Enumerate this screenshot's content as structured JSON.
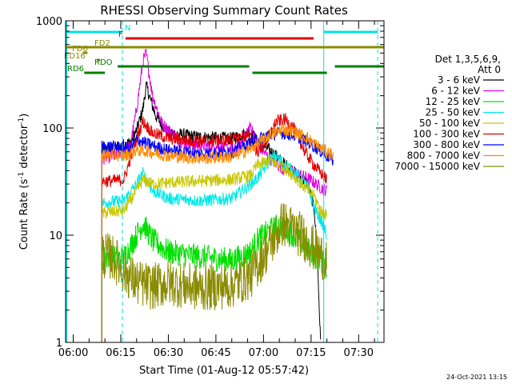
{
  "chart_data": {
    "type": "line",
    "title": "RHESSI Observing Summary Count Rates",
    "xlabel": "Start Time (01-Aug-12 05:57:42)",
    "ylabel_main": "Count Rate (s",
    "ylabel_sup": "-1",
    "ylabel_mid": " detector",
    "ylabel_end": ")",
    "y_scale": "log",
    "ylim": [
      1,
      1000
    ],
    "xlim_minutes": [
      -2.4,
      98
    ],
    "x_ticks": [
      {
        "label": "06:00",
        "minute": 0
      },
      {
        "label": "06:15",
        "minute": 15
      },
      {
        "label": "06:30",
        "minute": 30
      },
      {
        "label": "06:45",
        "minute": 45
      },
      {
        "label": "07:00",
        "minute": 60
      },
      {
        "label": "07:15",
        "minute": 75
      },
      {
        "label": "07:30",
        "minute": 90
      }
    ],
    "y_ticks": [
      {
        "label": "1",
        "value": 1
      },
      {
        "label": "10",
        "value": 10
      },
      {
        "label": "100",
        "value": 100
      },
      {
        "label": "1000",
        "value": 1000
      }
    ],
    "legend_header": [
      "Det 1,3,5,6,9,",
      "Att 0"
    ],
    "legend_placement": "right",
    "series": [
      {
        "name": "3 - 6 keV",
        "color": "#000000",
        "points": [
          [
            9,
            60
          ],
          [
            9.5,
            62
          ],
          [
            14,
            66
          ],
          [
            18,
            74
          ],
          [
            20,
            95
          ],
          [
            22,
            150
          ],
          [
            23,
            250
          ],
          [
            24,
            200
          ],
          [
            26,
            130
          ],
          [
            30,
            90
          ],
          [
            40,
            82
          ],
          [
            50,
            80
          ],
          [
            56,
            92
          ],
          [
            58,
            75
          ],
          [
            62,
            62
          ],
          [
            66,
            48
          ],
          [
            70,
            38
          ],
          [
            74,
            30
          ],
          [
            76,
            18
          ],
          [
            77,
            6
          ],
          [
            78,
            1
          ]
        ]
      },
      {
        "name": "6 - 12 keV",
        "color": "#e000e0",
        "points": [
          [
            9,
            50
          ],
          [
            9.5,
            52
          ],
          [
            14,
            56
          ],
          [
            18,
            68
          ],
          [
            20,
            150
          ],
          [
            22,
            420
          ],
          [
            23,
            500
          ],
          [
            25,
            200
          ],
          [
            28,
            110
          ],
          [
            35,
            70
          ],
          [
            45,
            68
          ],
          [
            52,
            62
          ],
          [
            55,
            95
          ],
          [
            56,
            105
          ],
          [
            58,
            70
          ],
          [
            62,
            52
          ],
          [
            66,
            42
          ],
          [
            70,
            38
          ],
          [
            74,
            34
          ],
          [
            78,
            28
          ],
          [
            80,
            26
          ]
        ]
      },
      {
        "name": "12 - 25 keV",
        "color": "#00e000",
        "points": [
          [
            9,
            6
          ],
          [
            12,
            6.5
          ],
          [
            14,
            6
          ],
          [
            16,
            6.2
          ],
          [
            20,
            10
          ],
          [
            22,
            13
          ],
          [
            25,
            9
          ],
          [
            30,
            7
          ],
          [
            40,
            6.3
          ],
          [
            50,
            5.8
          ],
          [
            56,
            7
          ],
          [
            58,
            9
          ],
          [
            62,
            11
          ],
          [
            65,
            12.5
          ],
          [
            68,
            11
          ],
          [
            72,
            8.5
          ],
          [
            76,
            6.5
          ],
          [
            79,
            5.5
          ],
          [
            80,
            5
          ]
        ]
      },
      {
        "name": "25 - 50 keV",
        "color": "#00e8e8",
        "points": [
          [
            9,
            20
          ],
          [
            12,
            20.5
          ],
          [
            16,
            21
          ],
          [
            20,
            30
          ],
          [
            22,
            38
          ],
          [
            25,
            26
          ],
          [
            30,
            22
          ],
          [
            40,
            21
          ],
          [
            50,
            22
          ],
          [
            56,
            30
          ],
          [
            58,
            34
          ],
          [
            62,
            50
          ],
          [
            64,
            55
          ],
          [
            66,
            48
          ],
          [
            70,
            38
          ],
          [
            74,
            28
          ],
          [
            76,
            18
          ],
          [
            78,
            14
          ],
          [
            80,
            10
          ]
        ]
      },
      {
        "name": "50 - 100 keV",
        "color": "#c8c800",
        "points": [
          [
            9,
            16
          ],
          [
            12,
            16.5
          ],
          [
            16,
            17
          ],
          [
            20,
            26
          ],
          [
            22,
            33
          ],
          [
            25,
            30
          ],
          [
            30,
            31
          ],
          [
            40,
            32
          ],
          [
            50,
            33
          ],
          [
            56,
            36
          ],
          [
            58,
            45
          ],
          [
            62,
            50
          ],
          [
            65,
            45
          ],
          [
            68,
            40
          ],
          [
            72,
            30
          ],
          [
            76,
            23
          ],
          [
            78,
            17
          ],
          [
            80,
            15
          ]
        ]
      },
      {
        "name": "100 - 300 keV",
        "color": "#e00000",
        "points": [
          [
            9,
            32
          ],
          [
            12,
            32
          ],
          [
            16,
            33
          ],
          [
            20,
            80
          ],
          [
            22,
            115
          ],
          [
            25,
            90
          ],
          [
            30,
            80
          ],
          [
            40,
            75
          ],
          [
            50,
            78
          ],
          [
            55,
            85
          ],
          [
            58,
            60
          ],
          [
            61,
            75
          ],
          [
            64,
            115
          ],
          [
            67,
            120
          ],
          [
            70,
            95
          ],
          [
            73,
            60
          ],
          [
            76,
            45
          ],
          [
            78,
            38
          ],
          [
            80,
            33
          ]
        ]
      },
      {
        "name": "300 - 800 keV",
        "color": "#0000ff",
        "points": [
          [
            9,
            68
          ],
          [
            12,
            67
          ],
          [
            16,
            66
          ],
          [
            18,
            64
          ],
          [
            20,
            78
          ],
          [
            24,
            70
          ],
          [
            30,
            62
          ],
          [
            40,
            58
          ],
          [
            50,
            60
          ],
          [
            55,
            70
          ],
          [
            58,
            78
          ],
          [
            62,
            88
          ],
          [
            66,
            90
          ],
          [
            70,
            85
          ],
          [
            74,
            74
          ],
          [
            77,
            64
          ],
          [
            80,
            55
          ],
          [
            82,
            50
          ]
        ]
      },
      {
        "name": "800 - 7000 keV",
        "color": "#ff8c00",
        "points": [
          [
            9,
            55
          ],
          [
            12,
            56
          ],
          [
            16,
            55
          ],
          [
            20,
            62
          ],
          [
            24,
            60
          ],
          [
            30,
            55
          ],
          [
            40,
            52
          ],
          [
            50,
            54
          ],
          [
            55,
            62
          ],
          [
            58,
            70
          ],
          [
            62,
            86
          ],
          [
            66,
            98
          ],
          [
            70,
            92
          ],
          [
            74,
            80
          ],
          [
            77,
            68
          ],
          [
            80,
            60
          ],
          [
            82,
            56
          ]
        ]
      },
      {
        "name": "7000 - 15000 keV",
        "color": "#8b8b00",
        "points": [
          [
            9,
            6.5
          ],
          [
            12,
            6.3
          ],
          [
            14,
            5.5
          ],
          [
            16,
            4.6
          ],
          [
            20,
            3.6
          ],
          [
            25,
            3.3
          ],
          [
            30,
            3.6
          ],
          [
            40,
            3.2
          ],
          [
            50,
            3.4
          ],
          [
            56,
            4.2
          ],
          [
            60,
            6.5
          ],
          [
            64,
            10
          ],
          [
            66,
            13
          ],
          [
            68,
            12
          ],
          [
            72,
            10
          ],
          [
            75,
            8
          ],
          [
            78,
            6.5
          ],
          [
            80,
            6
          ]
        ]
      }
    ],
    "flag_rows": [
      {
        "label": "N",
        "color": "#00e0e0",
        "segments": [
          [
            -2.4,
            15.5
          ],
          [
            79,
            96
          ]
        ]
      },
      {
        "label": "F",
        "color": "#e00000",
        "segments": [
          [
            16.5,
            75.8
          ]
        ]
      },
      {
        "label": "FD2",
        "color": "#8b8b00",
        "segments": [
          [
            -2.4,
            98
          ]
        ]
      },
      {
        "label": "FD6",
        "color": "#8b8b00",
        "segments": [
          [
            3,
            4.5
          ]
        ]
      },
      {
        "label": "ED16",
        "color": "#8b8b00",
        "segments": [
          [
            7.5,
            8.5
          ]
        ]
      },
      {
        "label": "RDO",
        "color": "#008000",
        "segments": [
          [
            14,
            55.5
          ],
          [
            82.5,
            98
          ]
        ]
      },
      {
        "label": "RD6",
        "color": "#008000",
        "segments": [
          [
            3.5,
            10
          ],
          [
            56.5,
            80
          ]
        ]
      }
    ]
  },
  "footer": {
    "timestamp": "24-Oct-2021 13:15"
  }
}
